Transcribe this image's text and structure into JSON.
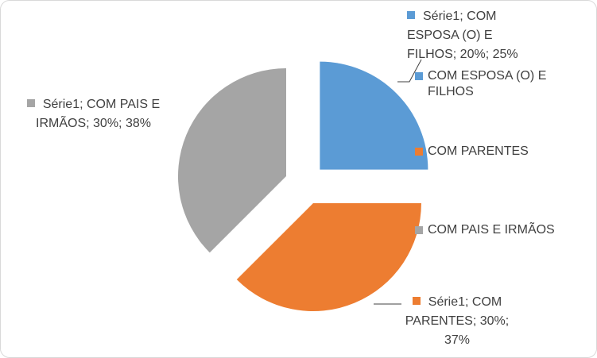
{
  "chart_data": {
    "type": "pie",
    "title": "",
    "exploded": true,
    "series": [
      {
        "name": "Série1",
        "categories": [
          "COM ESPOSA (O) E FILHOS",
          "COM PARENTES",
          "COM PAIS E IRMÃOS"
        ],
        "values": [
          20,
          30,
          30
        ],
        "percentages": [
          25,
          37,
          38
        ],
        "colors": [
          "#5b9bd5",
          "#ed7d31",
          "#a5a5a5"
        ]
      }
    ],
    "data_labels": [
      "Série1; COM ESPOSA (O) E FILHOS; 20%; 25%",
      "Série1; COM PARENTES; 30%; 37%",
      "Série1; COM PAIS E IRMÃOS; 30%; 38%"
    ],
    "legend": {
      "position": "right",
      "entries": [
        "COM ESPOSA (O) E FILHOS",
        "COM PARENTES",
        "COM PAIS E IRMÃOS"
      ]
    }
  }
}
